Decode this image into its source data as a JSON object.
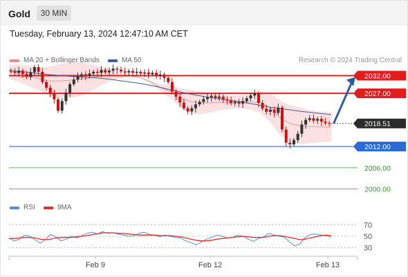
{
  "header": {
    "instrument": "Gold",
    "timeframe": "30 MIN"
  },
  "timestamp": "Tuesday, February 13, 2024 12:47:10 AM CET",
  "legend": {
    "bb_label": "MA 20 + Bollinger Bands",
    "ma50_label": "MA 50",
    "credit": "Research © 2024 Trading Central"
  },
  "rsi_legend": {
    "rsi_label": "RSI",
    "ma_label": "9MA"
  },
  "colors": {
    "bollinger_band": "#f7c9c9",
    "ma20": "#e89b9b",
    "ma50": "#3b5d9c",
    "candle_up": "#333333",
    "candle_down": "#cc1111",
    "resistance": "#e31d1d",
    "support_main": "#2a6ad4",
    "support_minor": "#2e9a2e",
    "current_price": "#2b2b2b",
    "arrow": "#2b5ea7",
    "rsi": "#5b8ad8",
    "rsi_ma": "#e03030"
  },
  "chart_data": [
    {
      "type": "candlestick",
      "title": "",
      "instrument": "Gold",
      "timeframe": "30 MIN",
      "ylim": [
        1997,
        2036
      ],
      "x_tick_labels": [
        "Feb 9",
        "Feb 12",
        "Feb 13"
      ],
      "current_price": 2018.51,
      "levels": [
        {
          "value": 2032.0,
          "label": "2032.00",
          "kind": "resistance"
        },
        {
          "value": 2027.0,
          "label": "2027.00",
          "kind": "resistance"
        },
        {
          "value": 2018.51,
          "label": "2018.51",
          "kind": "current"
        },
        {
          "value": 2012.0,
          "label": "2012.00",
          "kind": "pivot"
        },
        {
          "value": 2006.0,
          "label": "2006.00",
          "kind": "support"
        },
        {
          "value": 2000.0,
          "label": "2000.00",
          "kind": "support"
        }
      ],
      "close_series": [
        2033.2,
        2032.8,
        2033.4,
        2032.5,
        2031.6,
        2033.0,
        2034.4,
        2033.1,
        2030.2,
        2028.6,
        2026.9,
        2025.3,
        2022.1,
        2024.8,
        2027.2,
        2029.6,
        2030.9,
        2031.8,
        2032.4,
        2031.9,
        2032.6,
        2033.1,
        2032.8,
        2033.6,
        2032.9,
        2033.4,
        2034.0,
        2033.7,
        2033.2,
        2032.9,
        2033.3,
        2032.8,
        2033.1,
        2032.6,
        2032.9,
        2032.4,
        2032.8,
        2031.9,
        2032.3,
        2031.4,
        2030.2,
        2027.5,
        2026.1,
        2024.4,
        2022.8,
        2021.9,
        2022.8,
        2023.9,
        2024.6,
        2025.4,
        2025.9,
        2026.3,
        2025.7,
        2026.1,
        2025.3,
        2025.0,
        2024.2,
        2024.6,
        2024.1,
        2024.8,
        2025.6,
        2026.4,
        2027.0,
        2024.3,
        2022.7,
        2021.8,
        2022.4,
        2021.5,
        2023.0,
        2016.8,
        2013.1,
        2012.6,
        2013.8,
        2015.6,
        2018.2,
        2019.5,
        2020.0,
        2019.3,
        2019.8,
        2019.0,
        2018.6,
        2018.51
      ],
      "ma50_series": [
        2033.4,
        2033.2,
        2032.9,
        2032.6,
        2032.3,
        2032.1,
        2031.8,
        2031.7,
        2031.5,
        2031.3,
        2031.0,
        2030.6,
        2030.2,
        2029.8,
        2029.3,
        2028.7,
        2028.0,
        2027.4,
        2026.8,
        2026.3,
        2025.8,
        2025.4,
        2025.0,
        2024.6,
        2024.1,
        2023.6,
        2023.1,
        2022.7,
        2022.3,
        2021.9,
        2021.6,
        2021.3,
        2021.0
      ],
      "bollinger_upper": [
        2035.0,
        2035.2,
        2034.8,
        2034.4,
        2034.6,
        2035.2,
        2035.8,
        2035.8,
        2035.2,
        2034.6,
        2034.0,
        2033.0,
        2032.4,
        2031.6,
        2030.6,
        2029.6,
        2029.4,
        2028.4,
        2028.0,
        2027.6,
        2027.0,
        2026.8,
        2026.4,
        2026.6,
        2026.8,
        2027.4,
        2027.0,
        2024.8,
        2023.6,
        2023.0,
        2022.2,
        2021.8,
        2021.6
      ],
      "bollinger_lower": [
        2031.2,
        2030.2,
        2029.0,
        2027.8,
        2026.4,
        2025.8,
        2025.6,
        2026.2,
        2027.4,
        2029.0,
        2030.4,
        2031.2,
        2031.8,
        2031.4,
        2030.0,
        2027.8,
        2025.8,
        2023.0,
        2021.4,
        2021.0,
        2021.6,
        2022.2,
        2022.6,
        2022.8,
        2022.4,
        2021.4,
        2018.6,
        2015.0,
        2013.2,
        2012.6,
        2013.0,
        2013.2,
        2013.4
      ],
      "projection": {
        "from": 2018.51,
        "to": 2032.0
      }
    },
    {
      "type": "line",
      "title": "RSI",
      "ylim": [
        20,
        80
      ],
      "y_ticks": [
        70,
        50,
        30
      ],
      "series": [
        {
          "name": "RSI",
          "values": [
            47,
            42,
            45,
            52,
            50,
            44,
            38,
            44,
            53,
            49,
            42,
            45,
            50,
            47,
            51,
            55,
            57,
            54,
            58,
            55,
            56,
            54,
            52,
            50,
            51,
            55,
            57,
            53,
            52,
            49,
            52,
            50,
            48,
            47,
            42,
            39,
            35,
            40,
            45,
            48,
            52,
            50,
            47,
            48,
            52,
            50,
            45,
            41,
            46,
            49,
            55,
            52,
            50,
            48,
            40,
            33,
            37,
            48,
            53,
            54,
            52,
            51,
            48
          ]
        },
        {
          "name": "9MA",
          "values": [
            46,
            46,
            47,
            48,
            48,
            47,
            45,
            44,
            45,
            47,
            48,
            48,
            48,
            49,
            50,
            51,
            53,
            54,
            56,
            56,
            56,
            55,
            55,
            54,
            53,
            52,
            52,
            52,
            52,
            51,
            51,
            51,
            50,
            49,
            47,
            45,
            43,
            42,
            42,
            43,
            45,
            46,
            47,
            48,
            49,
            50,
            49,
            48,
            48,
            48,
            50,
            51,
            51,
            50,
            48,
            46,
            44,
            45,
            47,
            49,
            51,
            52,
            51
          ]
        }
      ]
    }
  ]
}
